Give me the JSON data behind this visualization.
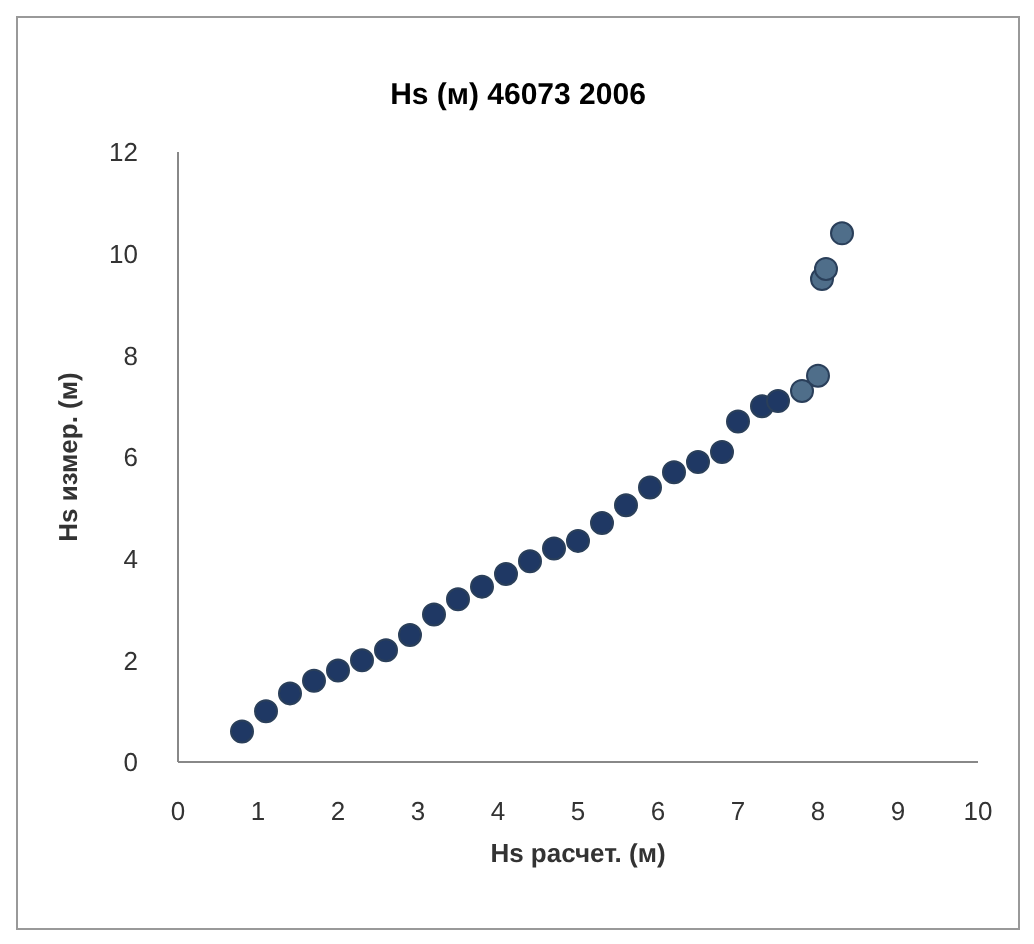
{
  "chart_data": {
    "type": "scatter",
    "title": "Hs (м) 46073 2006",
    "xlabel": "Hs расчет. (м)",
    "ylabel": "Hs измер. (м)",
    "xlim": [
      0,
      10
    ],
    "xticks": [
      0,
      1,
      2,
      3,
      4,
      5,
      6,
      7,
      8,
      9,
      10
    ],
    "ylim": [
      0,
      12
    ],
    "yticks": [
      0,
      2,
      4,
      6,
      8,
      10,
      12
    ],
    "grid": false,
    "legend": false,
    "marker": "circle",
    "series": [
      {
        "color": "#1f3864",
        "x": [
          0.8,
          1.1,
          1.4,
          1.7,
          2.0,
          2.3,
          2.6,
          2.9,
          3.2,
          3.5,
          3.8,
          4.1,
          4.4,
          4.7,
          5.0,
          5.3,
          5.6,
          5.9,
          6.2,
          6.5,
          6.8,
          7.0,
          7.3,
          7.5
        ],
        "values": [
          0.6,
          1.0,
          1.35,
          1.6,
          1.8,
          2.0,
          2.2,
          2.5,
          2.9,
          3.2,
          3.45,
          3.7,
          3.95,
          4.2,
          4.35,
          4.7,
          5.05,
          5.4,
          5.7,
          5.9,
          6.1,
          6.7,
          7.0,
          7.1
        ]
      },
      {
        "color": "#4f6e8a",
        "x": [
          7.8,
          8.0,
          8.05,
          8.1,
          8.3
        ],
        "values": [
          7.3,
          7.6,
          9.5,
          9.7,
          10.4
        ]
      }
    ]
  }
}
